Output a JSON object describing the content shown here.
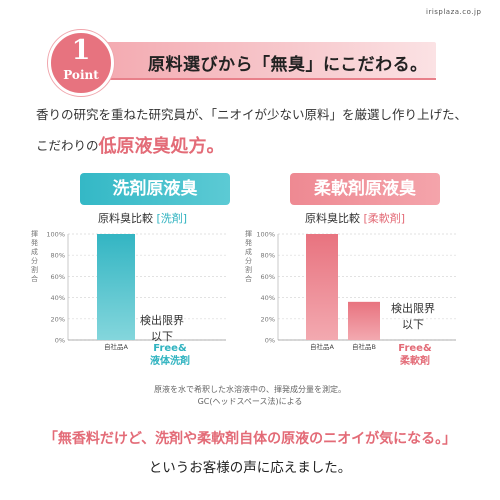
{
  "site": "irisplaza.co.jp",
  "point": {
    "number": "1",
    "word": "Point"
  },
  "banner_title": "原料選びから「無臭」にこだわる。",
  "intro": {
    "line1": "香りの研究を重ねた研究員が、「ニオイが少ない原料」を厳選し作り上げた、",
    "line2_prefix": "こだわりの",
    "line2_accent": "低原液臭処方。"
  },
  "colors": {
    "teal": "#33b5c3",
    "pink": "#e8737f",
    "accent": "#e36b77"
  },
  "chart_data": [
    {
      "type": "bar",
      "title": "洗剤原液臭",
      "subtitle_prefix": "原料臭比較",
      "subtitle_tag": "[洗剤]",
      "ylabel": "揮発成分割合",
      "yticks": [
        "100%",
        "80%",
        "60%",
        "40%",
        "20%",
        "0%"
      ],
      "ylim": [
        0,
        100
      ],
      "categories": [
        "自社品A",
        ""
      ],
      "values": [
        100,
        0
      ],
      "annotations": {
        "limit": [
          "検出限界",
          "以下"
        ],
        "product": [
          "Free&",
          "液体洗剤"
        ]
      }
    },
    {
      "type": "bar",
      "title": "柔軟剤原液臭",
      "subtitle_prefix": "原料臭比較",
      "subtitle_tag": "[柔軟剤]",
      "ylabel": "揮発成分割合",
      "yticks": [
        "100%",
        "80%",
        "60%",
        "40%",
        "20%",
        "0%"
      ],
      "ylim": [
        0,
        100
      ],
      "categories": [
        "自社品A",
        "自社品B",
        ""
      ],
      "values": [
        100,
        36,
        0
      ],
      "annotations": {
        "limit": [
          "検出限界",
          "以下"
        ],
        "product": [
          "Free&",
          "柔軟剤"
        ]
      }
    }
  ],
  "notes": {
    "line1": "原液を水で希釈した水溶液中の、揮発成分量を測定。",
    "line2": "GC(ヘッドスペース法)による"
  },
  "quote": "「無香料だけど、洗剤や柔軟剤自体の原液のニオイが気になる。」",
  "closing": "というお客様の声に応えました。"
}
